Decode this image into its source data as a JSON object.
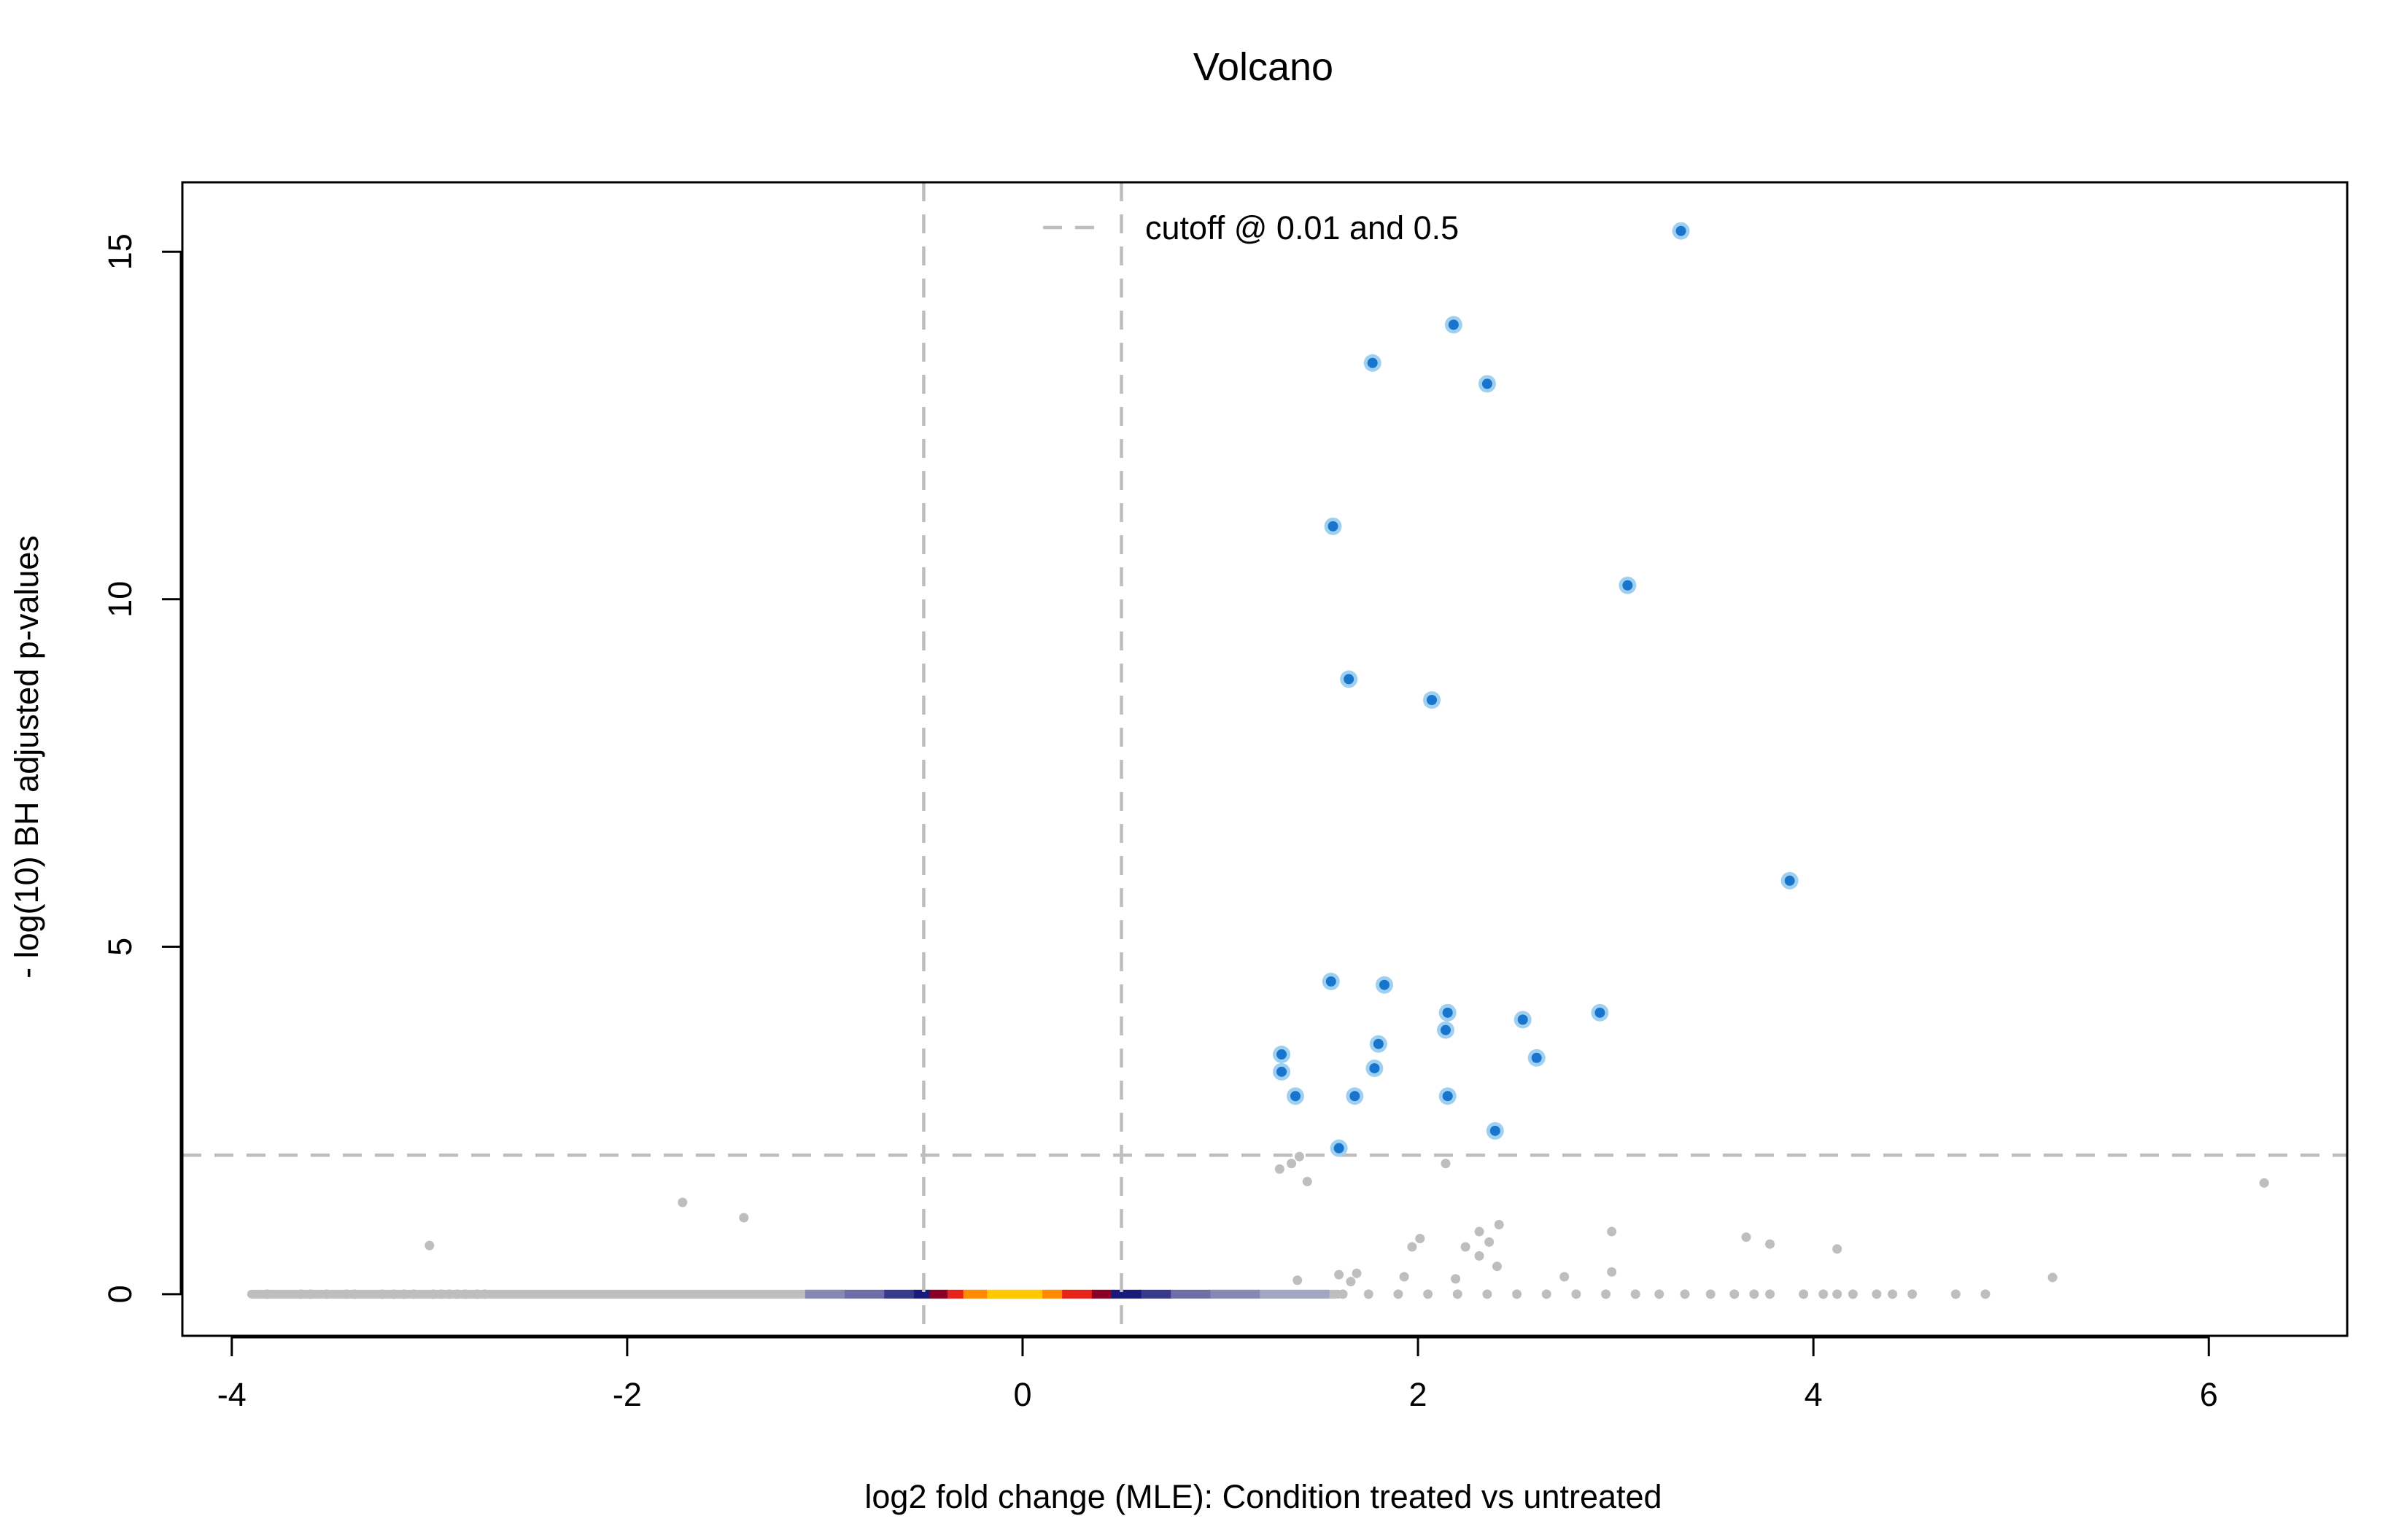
{
  "chart_data": {
    "type": "scatter",
    "title": "Volcano",
    "xlabel": "log2 fold change (MLE): Condition treated vs untreated",
    "ylabel": "- log(10) BH adjusted p-values",
    "xlim": [
      -4.25,
      6.7
    ],
    "ylim": [
      -0.6,
      16.0
    ],
    "x_ticks": [
      -4,
      -2,
      0,
      2,
      4,
      6
    ],
    "x_tick_labels": [
      "-4",
      "-2",
      "0",
      "2",
      "4",
      "6"
    ],
    "y_ticks": [
      0,
      5,
      10,
      15
    ],
    "y_tick_labels": [
      "0",
      "5",
      "10",
      "15"
    ],
    "grid": false,
    "legend": {
      "position": "top-center",
      "entries": [
        {
          "label": "cutoff @ 0.01 and 0.5",
          "style": "dashed",
          "color": "#bebebe"
        }
      ]
    },
    "cutoffs": {
      "y": 2.0,
      "x": [
        -0.5,
        0.5
      ]
    },
    "colors": {
      "significant_fill": "#1874cd",
      "significant_ring": "#9fd0f0",
      "nonsignificant": "#bebebe",
      "cutoff_line": "#bebebe",
      "frame": "#000000"
    },
    "density_band": {
      "y": 0,
      "stops": [
        [
          -1.1,
          -0.9,
          "#8888b4"
        ],
        [
          -0.9,
          -0.7,
          "#6f6fa8"
        ],
        [
          -0.7,
          -0.55,
          "#3a3a8c"
        ],
        [
          -0.55,
          -0.47,
          "#1a1a7a"
        ],
        [
          -0.47,
          -0.38,
          "#8b0025"
        ],
        [
          -0.38,
          -0.3,
          "#e8241a"
        ],
        [
          -0.3,
          -0.18,
          "#ff8c00"
        ],
        [
          -0.18,
          0.1,
          "#ffc800"
        ],
        [
          0.1,
          0.2,
          "#ff8c00"
        ],
        [
          0.2,
          0.35,
          "#e8241a"
        ],
        [
          0.35,
          0.45,
          "#8b0025"
        ],
        [
          0.45,
          0.6,
          "#1a1a7a"
        ],
        [
          0.6,
          0.75,
          "#3a3a8c"
        ],
        [
          0.75,
          0.95,
          "#6f6fa8"
        ],
        [
          0.95,
          1.2,
          "#8888b4"
        ],
        [
          1.2,
          1.55,
          "#a5a5c4"
        ]
      ]
    },
    "significant_points": [
      {
        "x": 3.33,
        "y": 15.3
      },
      {
        "x": 2.18,
        "y": 13.95
      },
      {
        "x": 1.77,
        "y": 13.4
      },
      {
        "x": 2.35,
        "y": 13.1
      },
      {
        "x": 1.57,
        "y": 11.05
      },
      {
        "x": 3.06,
        "y": 10.2
      },
      {
        "x": 1.65,
        "y": 8.85
      },
      {
        "x": 2.07,
        "y": 8.55
      },
      {
        "x": 3.88,
        "y": 5.95
      },
      {
        "x": 1.56,
        "y": 4.5
      },
      {
        "x": 1.83,
        "y": 4.45
      },
      {
        "x": 2.15,
        "y": 4.05
      },
      {
        "x": 2.92,
        "y": 4.05
      },
      {
        "x": 2.53,
        "y": 3.95
      },
      {
        "x": 2.14,
        "y": 3.8
      },
      {
        "x": 1.8,
        "y": 3.6
      },
      {
        "x": 1.31,
        "y": 3.45
      },
      {
        "x": 2.6,
        "y": 3.4
      },
      {
        "x": 1.78,
        "y": 3.25
      },
      {
        "x": 1.31,
        "y": 3.2
      },
      {
        "x": 1.38,
        "y": 2.85
      },
      {
        "x": 1.68,
        "y": 2.85
      },
      {
        "x": 2.15,
        "y": 2.85
      },
      {
        "x": 2.39,
        "y": 2.35
      },
      {
        "x": 1.6,
        "y": 2.1
      }
    ],
    "nonsignificant_points": [
      {
        "x": -1.72,
        "y": 1.32
      },
      {
        "x": -1.41,
        "y": 1.1
      },
      {
        "x": -3.0,
        "y": 0.7
      },
      {
        "x": 1.3,
        "y": 1.8
      },
      {
        "x": 1.36,
        "y": 1.88
      },
      {
        "x": 1.4,
        "y": 1.98
      },
      {
        "x": 1.44,
        "y": 1.62
      },
      {
        "x": 2.14,
        "y": 1.88
      },
      {
        "x": 6.28,
        "y": 1.6
      },
      {
        "x": 2.41,
        "y": 1.0
      },
      {
        "x": 2.98,
        "y": 0.9
      },
      {
        "x": 2.31,
        "y": 0.9
      },
      {
        "x": 2.01,
        "y": 0.8
      },
      {
        "x": 2.36,
        "y": 0.75
      },
      {
        "x": 1.97,
        "y": 0.68
      },
      {
        "x": 2.24,
        "y": 0.68
      },
      {
        "x": 2.31,
        "y": 0.55
      },
      {
        "x": 2.4,
        "y": 0.4
      },
      {
        "x": 3.66,
        "y": 0.82
      },
      {
        "x": 3.78,
        "y": 0.72
      },
      {
        "x": 4.12,
        "y": 0.65
      },
      {
        "x": 1.6,
        "y": 0.28
      },
      {
        "x": 1.69,
        "y": 0.3
      },
      {
        "x": 1.66,
        "y": 0.18
      },
      {
        "x": 1.39,
        "y": 0.2
      },
      {
        "x": 1.93,
        "y": 0.25
      },
      {
        "x": 2.19,
        "y": 0.22
      },
      {
        "x": 2.74,
        "y": 0.25
      },
      {
        "x": 2.98,
        "y": 0.32
      },
      {
        "x": 5.21,
        "y": 0.24
      },
      {
        "x": -3.82,
        "y": 0
      },
      {
        "x": -3.65,
        "y": 0
      },
      {
        "x": -3.6,
        "y": 0
      },
      {
        "x": -3.52,
        "y": 0
      },
      {
        "x": -3.42,
        "y": 0
      },
      {
        "x": -3.38,
        "y": 0
      },
      {
        "x": -3.24,
        "y": 0
      },
      {
        "x": -3.18,
        "y": 0
      },
      {
        "x": -3.13,
        "y": 0
      },
      {
        "x": -3.08,
        "y": 0
      },
      {
        "x": -2.98,
        "y": 0
      },
      {
        "x": -2.94,
        "y": 0
      },
      {
        "x": -2.9,
        "y": 0
      },
      {
        "x": -2.86,
        "y": 0
      },
      {
        "x": -2.82,
        "y": 0
      },
      {
        "x": -2.76,
        "y": 0
      },
      {
        "x": -2.72,
        "y": 0
      },
      {
        "x": 1.62,
        "y": 0
      },
      {
        "x": 1.75,
        "y": 0
      },
      {
        "x": 1.9,
        "y": 0
      },
      {
        "x": 2.05,
        "y": 0
      },
      {
        "x": 2.2,
        "y": 0
      },
      {
        "x": 2.35,
        "y": 0
      },
      {
        "x": 2.5,
        "y": 0
      },
      {
        "x": 2.65,
        "y": 0
      },
      {
        "x": 2.8,
        "y": 0
      },
      {
        "x": 2.95,
        "y": 0
      },
      {
        "x": 3.1,
        "y": 0
      },
      {
        "x": 3.22,
        "y": 0
      },
      {
        "x": 3.35,
        "y": 0
      },
      {
        "x": 3.48,
        "y": 0
      },
      {
        "x": 3.6,
        "y": 0
      },
      {
        "x": 3.7,
        "y": 0
      },
      {
        "x": 3.78,
        "y": 0
      },
      {
        "x": 3.95,
        "y": 0
      },
      {
        "x": 4.05,
        "y": 0
      },
      {
        "x": 4.12,
        "y": 0
      },
      {
        "x": 4.2,
        "y": 0
      },
      {
        "x": 4.32,
        "y": 0
      },
      {
        "x": 4.4,
        "y": 0
      },
      {
        "x": 4.5,
        "y": 0
      },
      {
        "x": 4.72,
        "y": 0
      },
      {
        "x": 4.87,
        "y": 0
      }
    ]
  }
}
